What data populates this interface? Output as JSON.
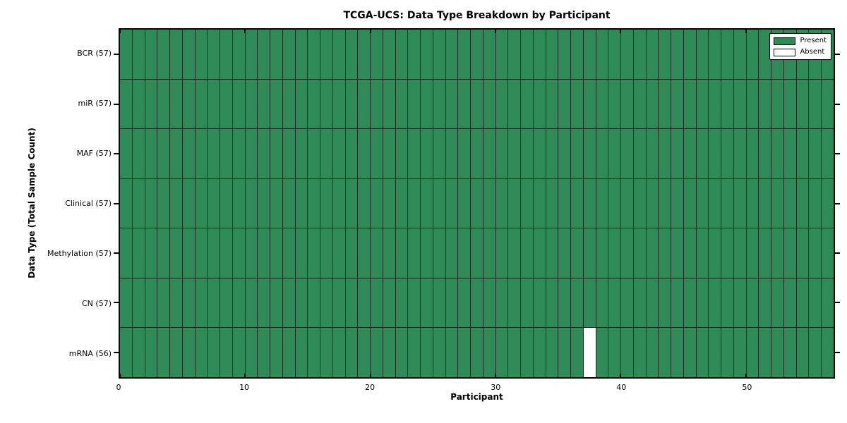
{
  "figure": {
    "title": "TCGA-UCS: Data Type Breakdown by Participant",
    "xlabel": "Participant",
    "ylabel": "Data Type (Total Sample Count)"
  },
  "legend": {
    "items": [
      {
        "label": "Present",
        "color": "#2e8b57"
      },
      {
        "label": "Absent",
        "color": "#ffffff"
      }
    ]
  },
  "chart_data": {
    "type": "heatmap",
    "title": "TCGA-UCS: Data Type Breakdown by Participant",
    "xlabel": "Participant",
    "ylabel": "Data Type (Total Sample Count)",
    "x_range": [
      0,
      57
    ],
    "x_ticks": [
      0,
      10,
      20,
      30,
      40,
      50
    ],
    "n_participants": 57,
    "rows": [
      {
        "label": "BCR (57)",
        "data_type": "BCR",
        "sample_count": 57,
        "absent_participants": []
      },
      {
        "label": "miR (57)",
        "data_type": "miR",
        "sample_count": 57,
        "absent_participants": []
      },
      {
        "label": "MAF (57)",
        "data_type": "MAF",
        "sample_count": 57,
        "absent_participants": []
      },
      {
        "label": "Clinical (57)",
        "data_type": "Clinical",
        "sample_count": 57,
        "absent_participants": []
      },
      {
        "label": "Methylation (57)",
        "data_type": "Methylation",
        "sample_count": 57,
        "absent_participants": []
      },
      {
        "label": "CN (57)",
        "data_type": "CN",
        "sample_count": 57,
        "absent_participants": []
      },
      {
        "label": "mRNA (56)",
        "data_type": "mRNA",
        "sample_count": 56,
        "absent_participants": [
          37
        ]
      }
    ],
    "present_color": "#2e8b57",
    "absent_color": "#ffffff",
    "grid_line_color": "#1c2a20",
    "legend_position": "upper right",
    "grid": true
  }
}
